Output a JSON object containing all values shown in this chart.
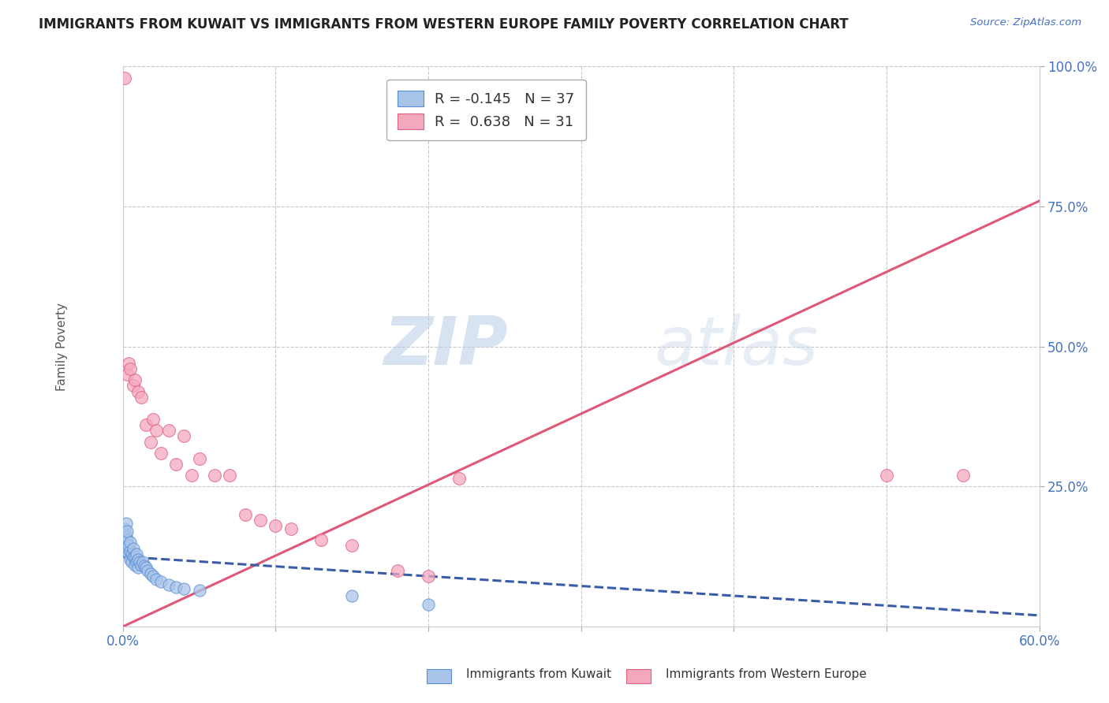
{
  "title": "IMMIGRANTS FROM KUWAIT VS IMMIGRANTS FROM WESTERN EUROPE FAMILY POVERTY CORRELATION CHART",
  "source_text": "Source: ZipAtlas.com",
  "ylabel": "Family Poverty",
  "xlim": [
    0.0,
    0.6
  ],
  "ylim": [
    0.0,
    1.0
  ],
  "xtick_labels": [
    "0.0%",
    "",
    "",
    "",
    "",
    "",
    "60.0%"
  ],
  "xtick_values": [
    0.0,
    0.1,
    0.2,
    0.3,
    0.4,
    0.5,
    0.6
  ],
  "ytick_labels": [
    "100.0%",
    "75.0%",
    "50.0%",
    "25.0%"
  ],
  "ytick_values": [
    1.0,
    0.75,
    0.5,
    0.25
  ],
  "kuwait_R": -0.145,
  "kuwait_N": 37,
  "western_europe_R": 0.638,
  "western_europe_N": 31,
  "legend_label_kuwait": "Immigrants from Kuwait",
  "legend_label_western": "Immigrants from Western Europe",
  "kuwait_color": "#a8c4e8",
  "western_europe_color": "#f4a8be",
  "kuwait_edge_color": "#5b8dd4",
  "western_europe_edge_color": "#e06080",
  "kuwait_trend_color": "#3a5ca8",
  "western_europe_trend_color": "#e05878",
  "background_color": "#ffffff",
  "grid_color": "#c8c8c8",
  "kuwait_points_x": [
    0.001,
    0.002,
    0.002,
    0.003,
    0.003,
    0.003,
    0.004,
    0.004,
    0.005,
    0.005,
    0.005,
    0.006,
    0.006,
    0.007,
    0.007,
    0.008,
    0.008,
    0.009,
    0.009,
    0.01,
    0.01,
    0.011,
    0.012,
    0.013,
    0.014,
    0.015,
    0.016,
    0.018,
    0.02,
    0.022,
    0.025,
    0.03,
    0.035,
    0.04,
    0.05,
    0.15,
    0.2
  ],
  "kuwait_points_y": [
    0.175,
    0.16,
    0.185,
    0.14,
    0.155,
    0.17,
    0.13,
    0.145,
    0.12,
    0.135,
    0.15,
    0.115,
    0.13,
    0.125,
    0.14,
    0.11,
    0.125,
    0.115,
    0.13,
    0.105,
    0.12,
    0.115,
    0.11,
    0.115,
    0.108,
    0.105,
    0.1,
    0.095,
    0.09,
    0.085,
    0.08,
    0.075,
    0.07,
    0.068,
    0.065,
    0.055,
    0.04
  ],
  "western_europe_points_x": [
    0.001,
    0.003,
    0.004,
    0.005,
    0.007,
    0.008,
    0.01,
    0.012,
    0.015,
    0.018,
    0.02,
    0.022,
    0.025,
    0.03,
    0.035,
    0.04,
    0.045,
    0.05,
    0.06,
    0.07,
    0.08,
    0.09,
    0.1,
    0.11,
    0.13,
    0.15,
    0.18,
    0.2,
    0.22,
    0.5,
    0.55
  ],
  "western_europe_points_y": [
    0.98,
    0.45,
    0.47,
    0.46,
    0.43,
    0.44,
    0.42,
    0.41,
    0.36,
    0.33,
    0.37,
    0.35,
    0.31,
    0.35,
    0.29,
    0.34,
    0.27,
    0.3,
    0.27,
    0.27,
    0.2,
    0.19,
    0.18,
    0.175,
    0.155,
    0.145,
    0.1,
    0.09,
    0.265,
    0.27,
    0.27
  ],
  "western_europe_trend_x": [
    0.0,
    0.6
  ],
  "western_europe_trend_y": [
    0.0,
    0.76
  ],
  "kuwait_trend_x": [
    0.0,
    0.6
  ],
  "kuwait_trend_y": [
    0.125,
    0.02
  ]
}
